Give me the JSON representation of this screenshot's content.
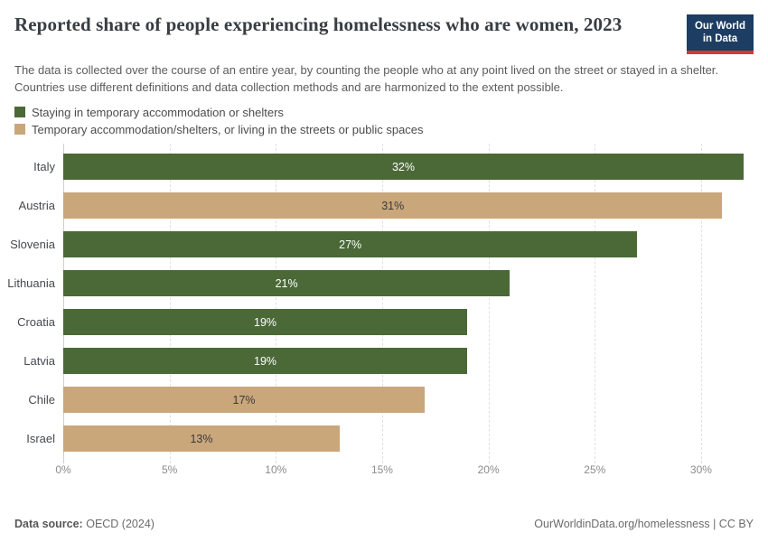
{
  "header": {
    "title": "Reported share of people experiencing homelessness who are women, 2023",
    "subtitle": "The data is collected over the course of an entire year, by counting the people who at any point lived on the street or stayed in a shelter. Countries use different definitions and data collection methods and are harmonized to the extent possible.",
    "logo": {
      "line1": "Our World",
      "line2": "in Data"
    }
  },
  "colors": {
    "green": "#4a6937",
    "tan": "#caa67b",
    "navy": "#1d3d63",
    "red": "#d13b32",
    "axis_line": "#cfcfcf",
    "gridline": "#e0e0e0"
  },
  "legend": [
    {
      "label": "Staying in temporary accommodation or shelters",
      "color": "#4a6937",
      "value_text_color": "light"
    },
    {
      "label": "Temporary accommodation/shelters, or living in the streets or public spaces",
      "color": "#caa67b",
      "value_text_color": "dark"
    }
  ],
  "chart_data": {
    "type": "bar",
    "orientation": "horizontal",
    "title": "Reported share of people experiencing homelessness who are women, 2023",
    "categories": [
      "Italy",
      "Austria",
      "Slovenia",
      "Lithuania",
      "Croatia",
      "Latvia",
      "Chile",
      "Israel"
    ],
    "values": [
      32,
      31,
      27,
      21,
      19,
      19,
      17,
      13
    ],
    "value_labels": [
      "32%",
      "31%",
      "27%",
      "21%",
      "19%",
      "19%",
      "17%",
      "13%"
    ],
    "series_index": [
      0,
      1,
      0,
      0,
      0,
      0,
      1,
      1
    ],
    "series_names": [
      "Staying in temporary accommodation or shelters",
      "Temporary accommodation/shelters, or living in the streets or public spaces"
    ],
    "x_tick_values": [
      0,
      5,
      10,
      15,
      20,
      25,
      30
    ],
    "x_tick_labels": [
      "0%",
      "5%",
      "10%",
      "15%",
      "20%",
      "25%",
      "30%"
    ],
    "xlim": [
      0,
      32
    ],
    "grid": "vertical-dashed",
    "legend_position": "top-left",
    "value_label_position": "center-of-bar"
  },
  "footer": {
    "source_label": "Data source:",
    "source_value": "OECD (2024)",
    "attribution": "OurWorldinData.org/homelessness | CC BY"
  }
}
